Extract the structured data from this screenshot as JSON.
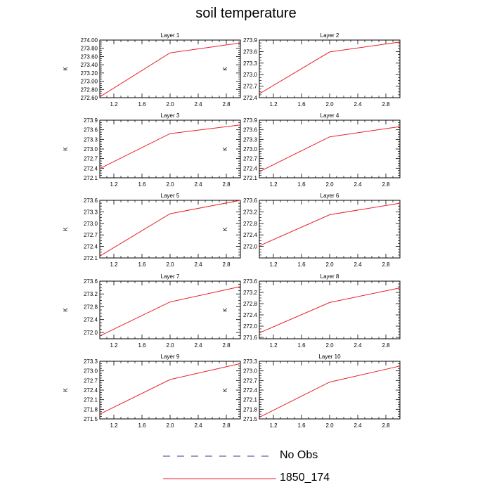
{
  "title": "soil temperature",
  "legend": {
    "items": [
      {
        "label": "No Obs",
        "color": "#3b3b8f",
        "dash": "dashed"
      },
      {
        "label": "1850_174",
        "color": "#e8202a",
        "dash": "solid"
      }
    ]
  },
  "chart_data": [
    {
      "type": "line",
      "title": "Layer 1",
      "ylabel": "K",
      "xlim": [
        1.0,
        3.0
      ],
      "ylim": [
        272.6,
        274.0
      ],
      "xticks": [
        1.2,
        1.6,
        2.0,
        2.4,
        2.8
      ],
      "xticklabels": [
        "1.2",
        "1.6",
        "2.0",
        "2.4",
        "2.8"
      ],
      "yticks": [
        272.6,
        272.8,
        273.0,
        273.2,
        273.4,
        273.6,
        273.8,
        274.0
      ],
      "yticklabels": [
        "272.60",
        "272.80",
        "273.00",
        "273.20",
        "273.40",
        "273.60",
        "273.80",
        "274.00"
      ],
      "series": [
        {
          "name": "1850_174",
          "x": [
            1,
            2,
            3
          ],
          "y": [
            272.62,
            273.69,
            273.93
          ]
        }
      ]
    },
    {
      "type": "line",
      "title": "Layer 2",
      "ylabel": "K",
      "xlim": [
        1.0,
        3.0
      ],
      "ylim": [
        272.4,
        273.9
      ],
      "xticks": [
        1.2,
        1.6,
        2.0,
        2.4,
        2.8
      ],
      "xticklabels": [
        "1.2",
        "1.6",
        "2.0",
        "2.4",
        "2.8"
      ],
      "yticks": [
        272.4,
        272.7,
        273.0,
        273.3,
        273.6,
        273.9
      ],
      "yticklabels": [
        "272.4",
        "272.7",
        "273.0",
        "273.3",
        "273.6",
        "273.9"
      ],
      "series": [
        {
          "name": "1850_174",
          "x": [
            1,
            2,
            3
          ],
          "y": [
            272.5,
            273.59,
            273.85
          ]
        }
      ]
    },
    {
      "type": "line",
      "title": "Layer 3",
      "ylabel": "K",
      "xlim": [
        1.0,
        3.0
      ],
      "ylim": [
        272.1,
        273.9
      ],
      "xticks": [
        1.2,
        1.6,
        2.0,
        2.4,
        2.8
      ],
      "xticklabels": [
        "1.2",
        "1.6",
        "2.0",
        "2.4",
        "2.8"
      ],
      "yticks": [
        272.1,
        272.4,
        272.7,
        273.0,
        273.3,
        273.6,
        273.9
      ],
      "yticklabels": [
        "272.1",
        "272.4",
        "272.7",
        "273.0",
        "273.3",
        "273.6",
        "273.9"
      ],
      "series": [
        {
          "name": "1850_174",
          "x": [
            1,
            2,
            3
          ],
          "y": [
            272.39,
            273.48,
            273.75
          ]
        }
      ]
    },
    {
      "type": "line",
      "title": "Layer 4",
      "ylabel": "K",
      "xlim": [
        1.0,
        3.0
      ],
      "ylim": [
        272.1,
        273.9
      ],
      "xticks": [
        1.2,
        1.6,
        2.0,
        2.4,
        2.8
      ],
      "xticklabels": [
        "1.2",
        "1.6",
        "2.0",
        "2.4",
        "2.8"
      ],
      "yticks": [
        272.1,
        272.4,
        272.7,
        273.0,
        273.3,
        273.6,
        273.9
      ],
      "yticklabels": [
        "272.1",
        "272.4",
        "272.7",
        "273.0",
        "273.3",
        "273.6",
        "273.9"
      ],
      "series": [
        {
          "name": "1850_174",
          "x": [
            1,
            2,
            3
          ],
          "y": [
            272.29,
            273.38,
            273.7
          ]
        }
      ]
    },
    {
      "type": "line",
      "title": "Layer 5",
      "ylabel": "K",
      "xlim": [
        1.0,
        3.0
      ],
      "ylim": [
        272.1,
        273.6
      ],
      "xticks": [
        1.2,
        1.6,
        2.0,
        2.4,
        2.8
      ],
      "xticklabels": [
        "1.2",
        "1.6",
        "2.0",
        "2.4",
        "2.8"
      ],
      "yticks": [
        272.1,
        272.4,
        272.7,
        273.0,
        273.3,
        273.6
      ],
      "yticklabels": [
        "272.1",
        "272.4",
        "272.7",
        "273.0",
        "273.3",
        "273.6"
      ],
      "series": [
        {
          "name": "1850_174",
          "x": [
            1,
            2,
            3
          ],
          "y": [
            272.15,
            273.25,
            273.6
          ]
        }
      ]
    },
    {
      "type": "line",
      "title": "Layer 6",
      "ylabel": "K",
      "xlim": [
        1.0,
        3.0
      ],
      "ylim": [
        271.6,
        273.6
      ],
      "xticks": [
        1.2,
        1.6,
        2.0,
        2.4,
        2.8
      ],
      "xticklabels": [
        "1.2",
        "1.6",
        "2.0",
        "2.4",
        "2.8"
      ],
      "yticks": [
        272.0,
        272.4,
        272.8,
        273.2,
        273.6
      ],
      "yticklabels": [
        "272.0",
        "272.4",
        "272.8",
        "273.2",
        "273.6"
      ],
      "series": [
        {
          "name": "1850_174",
          "x": [
            1,
            2,
            3
          ],
          "y": [
            272.02,
            273.1,
            273.5
          ]
        }
      ]
    },
    {
      "type": "line",
      "title": "Layer 7",
      "ylabel": "K",
      "xlim": [
        1.0,
        3.0
      ],
      "ylim": [
        271.8,
        273.6
      ],
      "xticks": [
        1.2,
        1.6,
        2.0,
        2.4,
        2.8
      ],
      "xticklabels": [
        "1.2",
        "1.6",
        "2.0",
        "2.4",
        "2.8"
      ],
      "yticks": [
        272.0,
        272.4,
        272.8,
        273.2,
        273.6
      ],
      "yticklabels": [
        "272.0",
        "272.4",
        "272.8",
        "273.2",
        "273.6"
      ],
      "series": [
        {
          "name": "1850_174",
          "x": [
            1,
            2,
            3
          ],
          "y": [
            271.89,
            272.95,
            273.43
          ]
        }
      ]
    },
    {
      "type": "line",
      "title": "Layer 8",
      "ylabel": "K",
      "xlim": [
        1.0,
        3.0
      ],
      "ylim": [
        271.55,
        273.6
      ],
      "xticks": [
        1.2,
        1.6,
        2.0,
        2.4,
        2.8
      ],
      "xticklabels": [
        "1.2",
        "1.6",
        "2.0",
        "2.4",
        "2.8"
      ],
      "yticks": [
        271.6,
        272.0,
        272.4,
        272.8,
        273.2,
        273.6
      ],
      "yticklabels": [
        "271.6",
        "272.0",
        "272.4",
        "272.8",
        "273.2",
        "273.6"
      ],
      "series": [
        {
          "name": "1850_174",
          "x": [
            1,
            2,
            3
          ],
          "y": [
            271.76,
            272.84,
            273.36
          ]
        }
      ]
    },
    {
      "type": "line",
      "title": "Layer 9",
      "ylabel": "K",
      "xlim": [
        1.0,
        3.0
      ],
      "ylim": [
        271.5,
        273.3
      ],
      "xticks": [
        1.2,
        1.6,
        2.0,
        2.4,
        2.8
      ],
      "xticklabels": [
        "1.2",
        "1.6",
        "2.0",
        "2.4",
        "2.8"
      ],
      "yticks": [
        271.5,
        271.8,
        272.1,
        272.4,
        272.7,
        273.0,
        273.3
      ],
      "yticklabels": [
        "271.5",
        "271.8",
        "272.1",
        "272.4",
        "272.7",
        "273.0",
        "273.3"
      ],
      "series": [
        {
          "name": "1850_174",
          "x": [
            1,
            2,
            3
          ],
          "y": [
            271.65,
            272.73,
            273.23
          ]
        }
      ]
    },
    {
      "type": "line",
      "title": "Layer 10",
      "ylabel": "K",
      "xlim": [
        1.0,
        3.0
      ],
      "ylim": [
        271.5,
        273.3
      ],
      "xticks": [
        1.2,
        1.6,
        2.0,
        2.4,
        2.8
      ],
      "xticklabels": [
        "1.2",
        "1.6",
        "2.0",
        "2.4",
        "2.8"
      ],
      "yticks": [
        271.5,
        271.8,
        272.1,
        272.4,
        272.7,
        273.0,
        273.3
      ],
      "yticklabels": [
        "271.5",
        "271.8",
        "272.1",
        "272.4",
        "272.7",
        "273.0",
        "273.3"
      ],
      "series": [
        {
          "name": "1850_174",
          "x": [
            1,
            2,
            3
          ],
          "y": [
            271.55,
            272.65,
            273.15
          ]
        }
      ]
    }
  ]
}
